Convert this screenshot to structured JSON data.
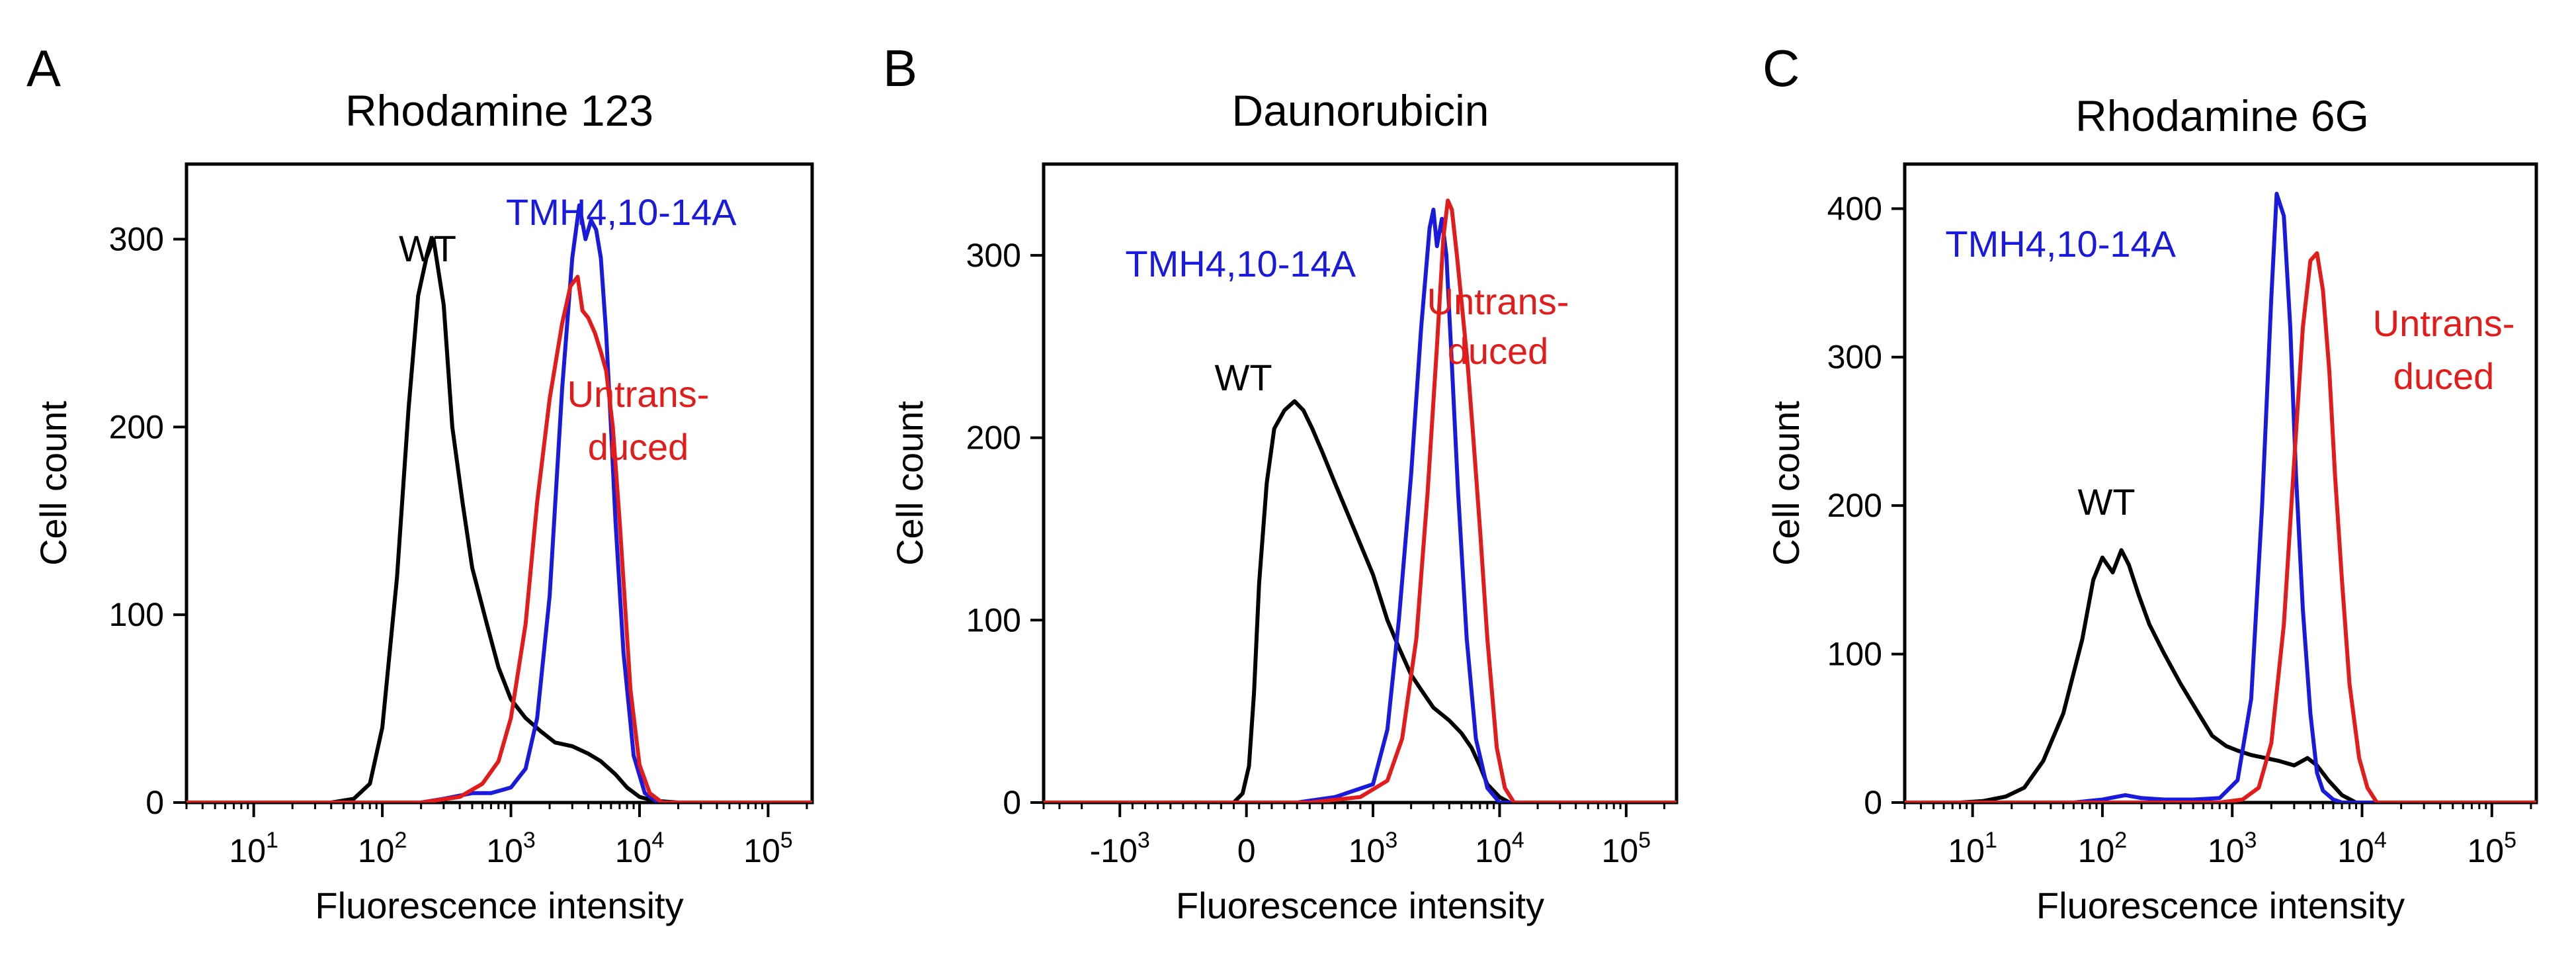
{
  "figure": {
    "colors": {
      "wt": "#000000",
      "mutant": "#1a1adc",
      "untransduced": "#e21b1b"
    }
  },
  "chart_data": [
    {
      "panel_label": "A",
      "type": "line",
      "title": "Rhodamine 123",
      "xlabel": "Fluorescence intensity",
      "ylabel": "Cell count",
      "x_scale": "log",
      "xlim": [
        3,
        220000
      ],
      "ylim": [
        0,
        340
      ],
      "x_ticks": [
        {
          "value": 10,
          "base": "10",
          "exp": "1"
        },
        {
          "value": 100,
          "base": "10",
          "exp": "2"
        },
        {
          "value": 1000,
          "base": "10",
          "exp": "3"
        },
        {
          "value": 10000,
          "base": "10",
          "exp": "4"
        },
        {
          "value": 100000,
          "base": "10",
          "exp": "5"
        }
      ],
      "y_ticks": [
        0,
        100,
        200,
        300
      ],
      "series": [
        {
          "name": "WT",
          "color": "#000000",
          "x": [
            3,
            40,
            60,
            80,
            100,
            130,
            160,
            190,
            220,
            250,
            300,
            350,
            420,
            500,
            650,
            800,
            1000,
            1300,
            1700,
            2200,
            3000,
            4000,
            5000,
            6500,
            8000,
            10000,
            13000,
            20000,
            220000
          ],
          "y": [
            0,
            0,
            2,
            10,
            40,
            120,
            210,
            270,
            290,
            300,
            265,
            200,
            160,
            125,
            95,
            72,
            55,
            45,
            38,
            32,
            30,
            26,
            22,
            15,
            8,
            3,
            1,
            0,
            0
          ]
        },
        {
          "name": "TMH4,10-14A",
          "label": "TMH4,10-14A",
          "color": "#1a1adc",
          "x": [
            3,
            200,
            300,
            500,
            700,
            1000,
            1300,
            1600,
            2000,
            2500,
            3000,
            3400,
            3800,
            4200,
            4600,
            5000,
            5500,
            6000,
            6500,
            7500,
            9000,
            11000,
            14000,
            220000
          ],
          "y": [
            0,
            0,
            2,
            5,
            5,
            8,
            18,
            45,
            110,
            220,
            290,
            318,
            300,
            310,
            305,
            290,
            250,
            200,
            150,
            80,
            25,
            5,
            0,
            0
          ]
        },
        {
          "name": "Untransduced",
          "label": [
            "Untrans-",
            "duced"
          ],
          "color": "#e21b1b",
          "x": [
            3,
            200,
            400,
            600,
            800,
            1000,
            1300,
            1600,
            2000,
            2500,
            2900,
            3300,
            3600,
            4000,
            4500,
            5000,
            5500,
            6200,
            7000,
            8500,
            10000,
            12000,
            15000,
            220000
          ],
          "y": [
            0,
            0,
            3,
            10,
            22,
            45,
            95,
            160,
            215,
            255,
            275,
            280,
            262,
            258,
            250,
            240,
            230,
            200,
            150,
            60,
            20,
            5,
            0,
            0
          ]
        }
      ]
    },
    {
      "panel_label": "B",
      "type": "line",
      "title": "Daunorubicin",
      "xlabel": "Fluorescence intensity",
      "ylabel": "Cell count",
      "x_scale": "biexponential",
      "xlim": [
        -4000,
        250000
      ],
      "ylim": [
        0,
        350
      ],
      "x_ticks": [
        {
          "value": -1000,
          "base": "-10",
          "exp": "3"
        },
        {
          "value": 0,
          "base": "0",
          "exp": ""
        },
        {
          "value": 1000,
          "base": "10",
          "exp": "3"
        },
        {
          "value": 10000,
          "base": "10",
          "exp": "4"
        },
        {
          "value": 100000,
          "base": "10",
          "exp": "5"
        }
      ],
      "y_ticks": [
        0,
        100,
        200,
        300
      ],
      "series": [
        {
          "name": "WT",
          "color": "#000000",
          "x": [
            -4000,
            -100,
            -30,
            20,
            60,
            100,
            160,
            220,
            300,
            380,
            450,
            520,
            600,
            700,
            850,
            1000,
            1300,
            1600,
            2000,
            2500,
            3000,
            4000,
            5000,
            6000,
            7000,
            8000,
            10000,
            12000,
            250000
          ],
          "y": [
            0,
            0,
            5,
            20,
            60,
            120,
            175,
            205,
            215,
            220,
            215,
            205,
            192,
            175,
            150,
            125,
            100,
            85,
            70,
            60,
            52,
            45,
            38,
            30,
            20,
            10,
            3,
            0,
            0
          ]
        },
        {
          "name": "TMH4,10-14A",
          "label": "TMH4,10-14A",
          "color": "#1a1adc",
          "x": [
            -4000,
            400,
            700,
            1000,
            1300,
            1600,
            2000,
            2400,
            2800,
            3000,
            3200,
            3500,
            3800,
            4200,
            4700,
            5500,
            6500,
            8000,
            10000,
            250000
          ],
          "y": [
            0,
            0,
            3,
            10,
            40,
            100,
            180,
            260,
            315,
            325,
            305,
            320,
            300,
            240,
            170,
            90,
            35,
            8,
            0,
            0
          ]
        },
        {
          "name": "Untransduced",
          "label": [
            "Untrans-",
            "duced"
          ],
          "color": "#e21b1b",
          "x": [
            -4000,
            500,
            900,
            1300,
            1700,
            2200,
            2700,
            3200,
            3600,
            3900,
            4200,
            4600,
            5000,
            5600,
            6200,
            7000,
            8000,
            9500,
            11000,
            13000,
            250000
          ],
          "y": [
            0,
            0,
            3,
            12,
            35,
            90,
            170,
            250,
            310,
            330,
            325,
            300,
            275,
            240,
            200,
            150,
            90,
            30,
            8,
            0,
            0
          ]
        }
      ]
    },
    {
      "panel_label": "C",
      "type": "line",
      "title": "Rhodamine 6G",
      "xlabel": "Fluorescence intensity",
      "ylabel": "Cell count",
      "x_scale": "log",
      "xlim": [
        3,
        220000
      ],
      "ylim": [
        0,
        430
      ],
      "x_ticks": [
        {
          "value": 10,
          "base": "10",
          "exp": "1"
        },
        {
          "value": 100,
          "base": "10",
          "exp": "2"
        },
        {
          "value": 1000,
          "base": "10",
          "exp": "3"
        },
        {
          "value": 10000,
          "base": "10",
          "exp": "4"
        },
        {
          "value": 100000,
          "base": "10",
          "exp": "5"
        }
      ],
      "y_ticks": [
        0,
        100,
        200,
        300,
        400
      ],
      "series": [
        {
          "name": "WT",
          "color": "#000000",
          "x": [
            3,
            8,
            12,
            18,
            25,
            35,
            50,
            70,
            85,
            100,
            120,
            140,
            160,
            190,
            230,
            300,
            400,
            550,
            700,
            900,
            1100,
            1400,
            1800,
            2300,
            3000,
            3800,
            4500,
            5500,
            7000,
            9000,
            220000
          ],
          "y": [
            0,
            0,
            1,
            4,
            10,
            28,
            60,
            110,
            150,
            165,
            155,
            170,
            160,
            140,
            120,
            100,
            80,
            60,
            45,
            38,
            35,
            32,
            30,
            28,
            25,
            30,
            25,
            15,
            5,
            0,
            0
          ]
        },
        {
          "name": "TMH4,10-14A",
          "label": "TMH4,10-14A",
          "color": "#1a1adc",
          "x": [
            3,
            60,
            100,
            150,
            200,
            300,
            500,
            800,
            1100,
            1400,
            1700,
            2000,
            2200,
            2500,
            2800,
            3100,
            3500,
            4000,
            4500,
            5000,
            6000,
            7000,
            220000
          ],
          "y": [
            0,
            0,
            2,
            5,
            3,
            2,
            2,
            3,
            15,
            70,
            200,
            340,
            410,
            395,
            320,
            220,
            130,
            60,
            20,
            8,
            2,
            0,
            0
          ]
        },
        {
          "name": "Untransduced",
          "label": [
            "Untrans-",
            "duced"
          ],
          "color": "#e21b1b",
          "x": [
            3,
            800,
            1200,
            1600,
            2000,
            2500,
            3000,
            3500,
            4000,
            4500,
            5000,
            5600,
            6200,
            7000,
            8000,
            9500,
            11000,
            13000,
            220000
          ],
          "y": [
            0,
            0,
            2,
            10,
            40,
            120,
            230,
            320,
            365,
            370,
            345,
            290,
            220,
            150,
            80,
            30,
            10,
            0,
            0
          ]
        }
      ]
    }
  ]
}
